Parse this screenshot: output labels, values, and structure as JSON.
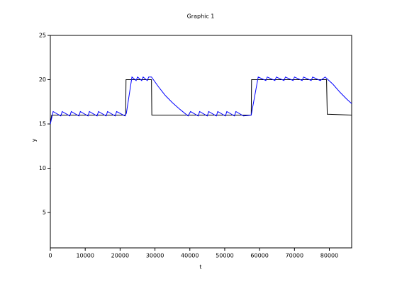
{
  "chart_data": {
    "type": "line",
    "title": "Graphic 1",
    "x_label": "t",
    "y_label": "y",
    "xlim": [
      0,
      86400
    ],
    "ylim": [
      1,
      25
    ],
    "xticks": [
      0,
      10000,
      20000,
      30000,
      40000,
      50000,
      60000,
      70000,
      80000
    ],
    "yticks": [
      5,
      10,
      15,
      20,
      25
    ],
    "series": [
      {
        "color": "#000000",
        "x": [
          0,
          400,
          21600,
          21700,
          29000,
          29100,
          57600,
          57700,
          79200,
          79400,
          86400
        ],
        "values": [
          15.0,
          16.0,
          16.0,
          20.0,
          20.0,
          16.0,
          16.0,
          20.0,
          20.0,
          16.1,
          16.0
        ]
      },
      {
        "color": "#0000ff",
        "x": [
          0,
          800,
          3000,
          3400,
          5600,
          6000,
          8200,
          8600,
          10800,
          11200,
          13400,
          13800,
          16000,
          16400,
          18600,
          19000,
          21400,
          21800,
          23400,
          24600,
          25000,
          26200,
          26600,
          27800,
          28200,
          29000,
          31000,
          33000,
          35000,
          37000,
          39500,
          40200,
          42400,
          42800,
          45000,
          45400,
          47600,
          48000,
          50200,
          50600,
          52800,
          53200,
          55400,
          57600,
          59600,
          61800,
          62200,
          64400,
          64800,
          67000,
          67400,
          69600,
          70000,
          72200,
          72600,
          74800,
          75200,
          77400,
          78800,
          81000,
          83000,
          85000,
          86400
        ],
        "values": [
          15.0,
          16.4,
          15.9,
          16.4,
          15.9,
          16.4,
          15.9,
          16.4,
          15.9,
          16.4,
          15.9,
          16.4,
          15.9,
          16.4,
          15.9,
          16.4,
          15.9,
          16.2,
          20.3,
          19.9,
          20.3,
          19.9,
          20.3,
          19.9,
          20.3,
          20.3,
          19.2,
          18.2,
          17.4,
          16.7,
          15.9,
          16.4,
          15.9,
          16.4,
          15.9,
          16.4,
          15.9,
          16.4,
          15.9,
          16.4,
          15.9,
          16.4,
          15.9,
          16.0,
          20.3,
          19.9,
          20.3,
          19.9,
          20.3,
          19.9,
          20.3,
          19.9,
          20.3,
          19.9,
          20.3,
          19.9,
          20.3,
          19.9,
          20.3,
          19.5,
          18.6,
          17.8,
          17.3
        ]
      }
    ]
  }
}
